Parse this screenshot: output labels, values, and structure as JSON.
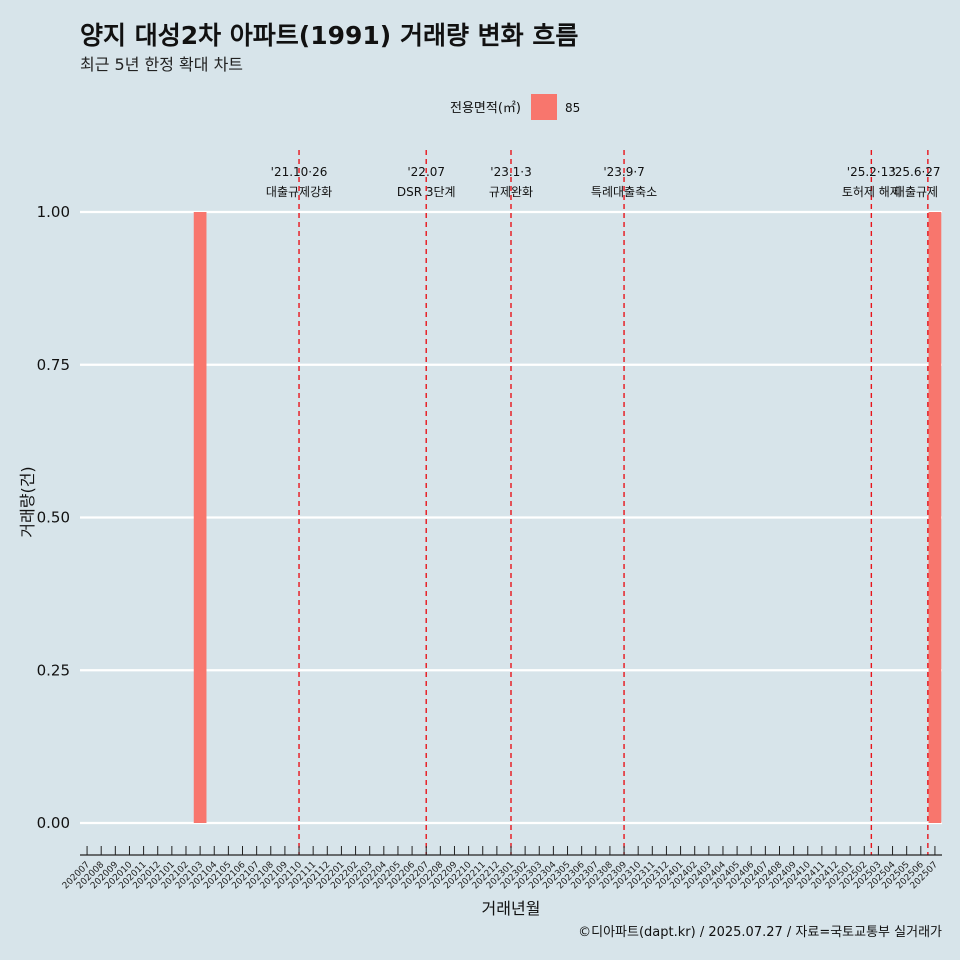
{
  "header": {
    "title": "양지 대성2차 아파트(1991) 거래량 변화 흐름",
    "subtitle": "최근 5년 한정 확대 차트"
  },
  "legend": {
    "title": "전용면적(㎡)",
    "items": [
      {
        "label": "85",
        "color": "#f8766d"
      }
    ]
  },
  "caption": "©디아파트(dapt.kr) / 2025.07.27 / 자료=국토교통부 실거래가",
  "colors": {
    "background": "#d7e4ea",
    "grid": "#ffffff",
    "bar": "#f8766d",
    "event_line": "#e8141b"
  },
  "chart_data": {
    "type": "bar",
    "title": "양지 대성2차 아파트(1991) 거래량 변화 흐름",
    "subtitle": "최근 5년 한정 확대 차트",
    "xlabel": "거래년월",
    "ylabel": "거래량(건)",
    "ylim": [
      0,
      1
    ],
    "yticks": [
      "0.00",
      "0.25",
      "0.50",
      "0.75",
      "1.00"
    ],
    "grid": true,
    "legend_position": "top",
    "categories": [
      "202007",
      "202008",
      "202009",
      "202010",
      "202011",
      "202012",
      "202101",
      "202102",
      "202103",
      "202104",
      "202105",
      "202106",
      "202107",
      "202108",
      "202109",
      "202110",
      "202111",
      "202112",
      "202201",
      "202202",
      "202203",
      "202204",
      "202205",
      "202206",
      "202207",
      "202208",
      "202209",
      "202210",
      "202211",
      "202212",
      "202301",
      "202302",
      "202303",
      "202304",
      "202305",
      "202306",
      "202307",
      "202308",
      "202309",
      "202310",
      "202311",
      "202312",
      "202401",
      "202402",
      "202403",
      "202404",
      "202405",
      "202406",
      "202407",
      "202408",
      "202409",
      "202410",
      "202411",
      "202412",
      "202501",
      "202502",
      "202503",
      "202504",
      "202505",
      "202506",
      "202507"
    ],
    "series": [
      {
        "name": "85",
        "color": "#f8766d",
        "points": [
          {
            "x": "202103",
            "y": 1
          },
          {
            "x": "202507",
            "y": 1
          }
        ]
      }
    ],
    "annotations": [
      {
        "x": "202110",
        "date": "'21.10·26",
        "label": "대출규제강화",
        "offset": 0
      },
      {
        "x": "202207",
        "date": "'22.07",
        "label": "DSR 3단계",
        "offset": 0
      },
      {
        "x": "202301",
        "date": "'23.1·3",
        "label": "규제완화",
        "offset": 0
      },
      {
        "x": "202309",
        "date": "'23.9·7",
        "label": "특례대출축소",
        "offset": 0
      },
      {
        "x": "202502",
        "date": "'25.2·13",
        "label": "토허제 해제",
        "offset": 0.5
      },
      {
        "x": "202506",
        "date": "'25.6·27",
        "label": "대출규제",
        "offset": 0.5
      }
    ]
  }
}
